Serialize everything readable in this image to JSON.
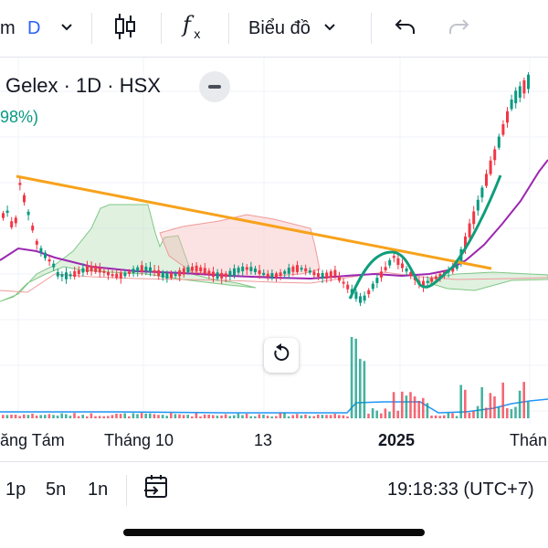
{
  "toolbar": {
    "interval_partial": "m",
    "interval": "D",
    "chart_type_label": "Biểu đồ",
    "indicator_icon": "fx-icon",
    "chart_icon": "candlestick-icon",
    "undo_icon": "undo-icon",
    "redo_icon": "redo-icon"
  },
  "legend": {
    "title": "Gelex · 1D · HSX",
    "change": "98%)"
  },
  "x_axis": {
    "labels": [
      "ăng Tám",
      "Tháng 10",
      "13",
      "2025",
      "Thán"
    ]
  },
  "bottom_bar": {
    "ranges": [
      "1p",
      "5n",
      "1n"
    ],
    "time": "19:18:33 (UTC+7)"
  },
  "colors": {
    "up": "#089981",
    "down": "#f23645",
    "trendline": "#f7a21b",
    "ma": "#9c27b0",
    "cloud_up": "#a5d6a7",
    "cloud_down": "#f8b8b8",
    "volume_avg": "#2196f3"
  },
  "annotations": {
    "trendline_color": "orange",
    "pattern_color": "teal"
  }
}
